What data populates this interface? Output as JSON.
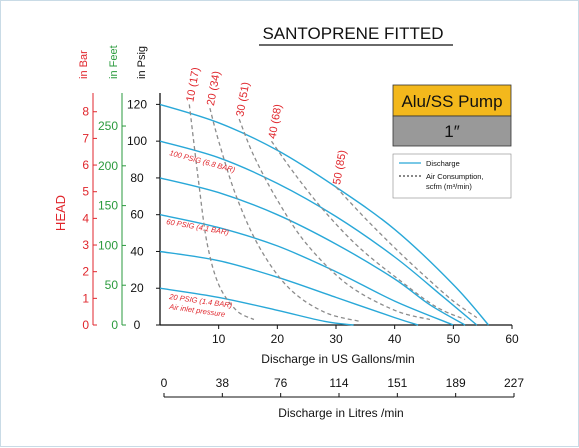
{
  "colors": {
    "curve": "#29a8d8",
    "air": "#8c8c8c",
    "red": "#e0262c",
    "green": "#2a9a3c",
    "black": "#111111",
    "badge_top": "#f3b81c",
    "badge_bottom": "#999999",
    "frame": "#c9dbe6"
  },
  "chart_data": {
    "type": "line",
    "title": "SANTOPRENE FITTED",
    "badge": {
      "model": "Alu/SS Pump",
      "size": "1″"
    },
    "xlabel": "Discharge in US Gallons/min",
    "xlabel2": "Discharge in Litres /min",
    "xlim": [
      0,
      60
    ],
    "ylim": [
      0,
      130
    ],
    "xticks": [
      10,
      20,
      30,
      40,
      50,
      60
    ],
    "xticks2": [
      "0",
      "38",
      "76",
      "114",
      "151",
      "189",
      "227"
    ],
    "y_axes": {
      "psig": {
        "label": "in Psig",
        "ticks": [
          "0",
          "20",
          "40",
          "60",
          "80",
          "100",
          "120"
        ],
        "values": [
          0,
          20,
          40,
          60,
          80,
          100,
          120
        ]
      },
      "feet": {
        "label": "in Feet",
        "ticks": [
          "0",
          "50",
          "100",
          "150",
          "200",
          "250"
        ],
        "values": [
          0,
          50,
          100,
          150,
          200,
          250
        ]
      },
      "bar": {
        "label": "in Bar",
        "ticks": [
          "0",
          "1",
          "2",
          "3",
          "4",
          "5",
          "6",
          "7",
          "8"
        ],
        "values": [
          0,
          1,
          2,
          3,
          4,
          5,
          6,
          7,
          8
        ]
      },
      "side_label": "HEAD"
    },
    "legend": {
      "position": "right",
      "discharge": "Discharge",
      "air_line1": "Air Consumption,",
      "air_line2": "scfm (m³/min)"
    },
    "discharge_series": [
      {
        "points": [
          [
            0,
            120
          ],
          [
            10,
            110
          ],
          [
            20,
            95
          ],
          [
            30,
            75
          ],
          [
            40,
            52
          ],
          [
            50,
            22
          ],
          [
            56,
            0
          ]
        ]
      },
      {
        "points": [
          [
            0,
            100
          ],
          [
            10,
            91
          ],
          [
            20,
            77
          ],
          [
            30,
            59
          ],
          [
            40,
            37
          ],
          [
            48,
            16
          ],
          [
            54,
            0
          ]
        ]
      },
      {
        "points": [
          [
            0,
            80
          ],
          [
            10,
            72
          ],
          [
            20,
            60
          ],
          [
            30,
            44
          ],
          [
            40,
            25
          ],
          [
            46,
            11
          ],
          [
            52,
            0
          ]
        ]
      },
      {
        "points": [
          [
            0,
            60
          ],
          [
            10,
            53
          ],
          [
            20,
            43
          ],
          [
            30,
            29
          ],
          [
            40,
            13
          ],
          [
            50,
            0
          ]
        ]
      },
      {
        "points": [
          [
            0,
            40
          ],
          [
            10,
            35
          ],
          [
            20,
            26
          ],
          [
            30,
            15
          ],
          [
            40,
            4
          ],
          [
            44,
            0
          ]
        ]
      },
      {
        "points": [
          [
            0,
            20
          ],
          [
            10,
            15
          ],
          [
            20,
            8
          ],
          [
            28,
            2
          ],
          [
            33,
            0
          ]
        ]
      }
    ],
    "pressure_labels": [
      "100 PSIG (6.8 BAR)",
      "60 PSIG (4.1 BAR)",
      "20 PSIG (1.4 BAR)",
      "Air inlet pressure"
    ],
    "air_series": [
      {
        "label": "10 (17)",
        "points": [
          [
            5,
            120
          ],
          [
            6.5,
            80
          ],
          [
            8,
            45
          ],
          [
            10,
            22
          ],
          [
            13,
            8
          ],
          [
            16,
            3
          ]
        ]
      },
      {
        "label": "20 (34)",
        "points": [
          [
            8.5,
            118
          ],
          [
            10,
            100
          ],
          [
            13,
            70
          ],
          [
            17,
            42
          ],
          [
            22,
            20
          ],
          [
            28,
            7
          ],
          [
            34,
            2
          ]
        ]
      },
      {
        "label": "30 (51)",
        "points": [
          [
            13.5,
            112
          ],
          [
            16,
            92
          ],
          [
            20,
            68
          ],
          [
            25,
            44
          ],
          [
            32,
            22
          ],
          [
            40,
            8
          ],
          [
            46,
            3
          ]
        ]
      },
      {
        "label": "40 (68)",
        "points": [
          [
            19,
            100
          ],
          [
            23,
            82
          ],
          [
            28,
            62
          ],
          [
            34,
            42
          ],
          [
            41,
            24
          ],
          [
            47,
            10
          ],
          [
            52,
            3
          ]
        ]
      },
      {
        "label": "50 (85)",
        "points": [
          [
            30,
            75
          ],
          [
            35,
            58
          ],
          [
            40,
            42
          ],
          [
            45,
            27
          ],
          [
            50,
            13
          ],
          [
            54,
            4
          ]
        ]
      }
    ]
  }
}
